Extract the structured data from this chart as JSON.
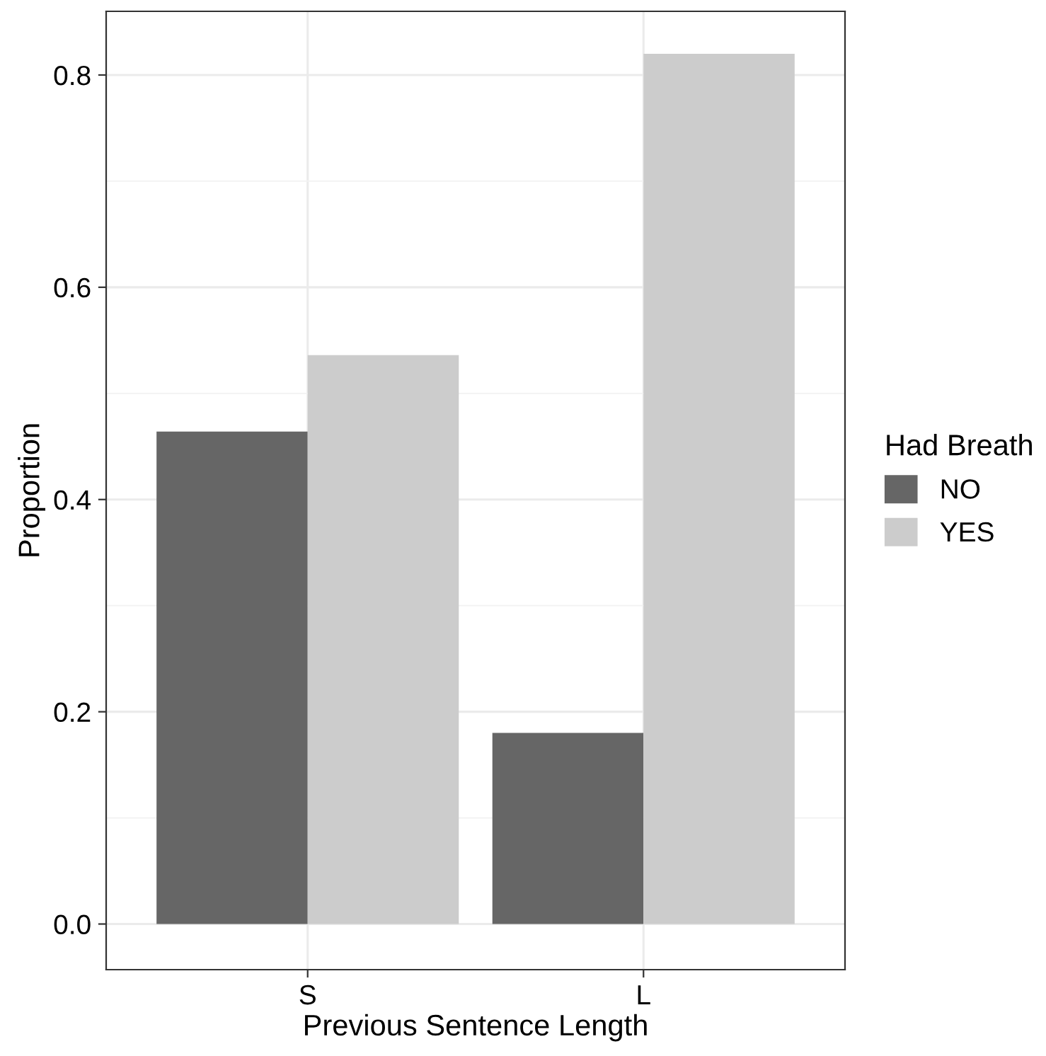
{
  "chart_data": {
    "type": "bar",
    "xlabel": "Previous Sentence Length",
    "ylabel": "Proportion",
    "legend_title": "Had Breath",
    "categories": [
      "S",
      "L"
    ],
    "series": [
      {
        "name": "NO",
        "color": "#666666",
        "values": [
          0.464,
          0.18
        ]
      },
      {
        "name": "YES",
        "color": "#cccccc",
        "values": [
          0.536,
          0.82
        ]
      }
    ],
    "ylim": [
      -0.043,
      0.86
    ],
    "yticks": [
      {
        "value": 0,
        "label": "0.0"
      },
      0.2,
      0.4,
      0.6,
      0.8
    ],
    "grid": true,
    "legend": "right"
  }
}
